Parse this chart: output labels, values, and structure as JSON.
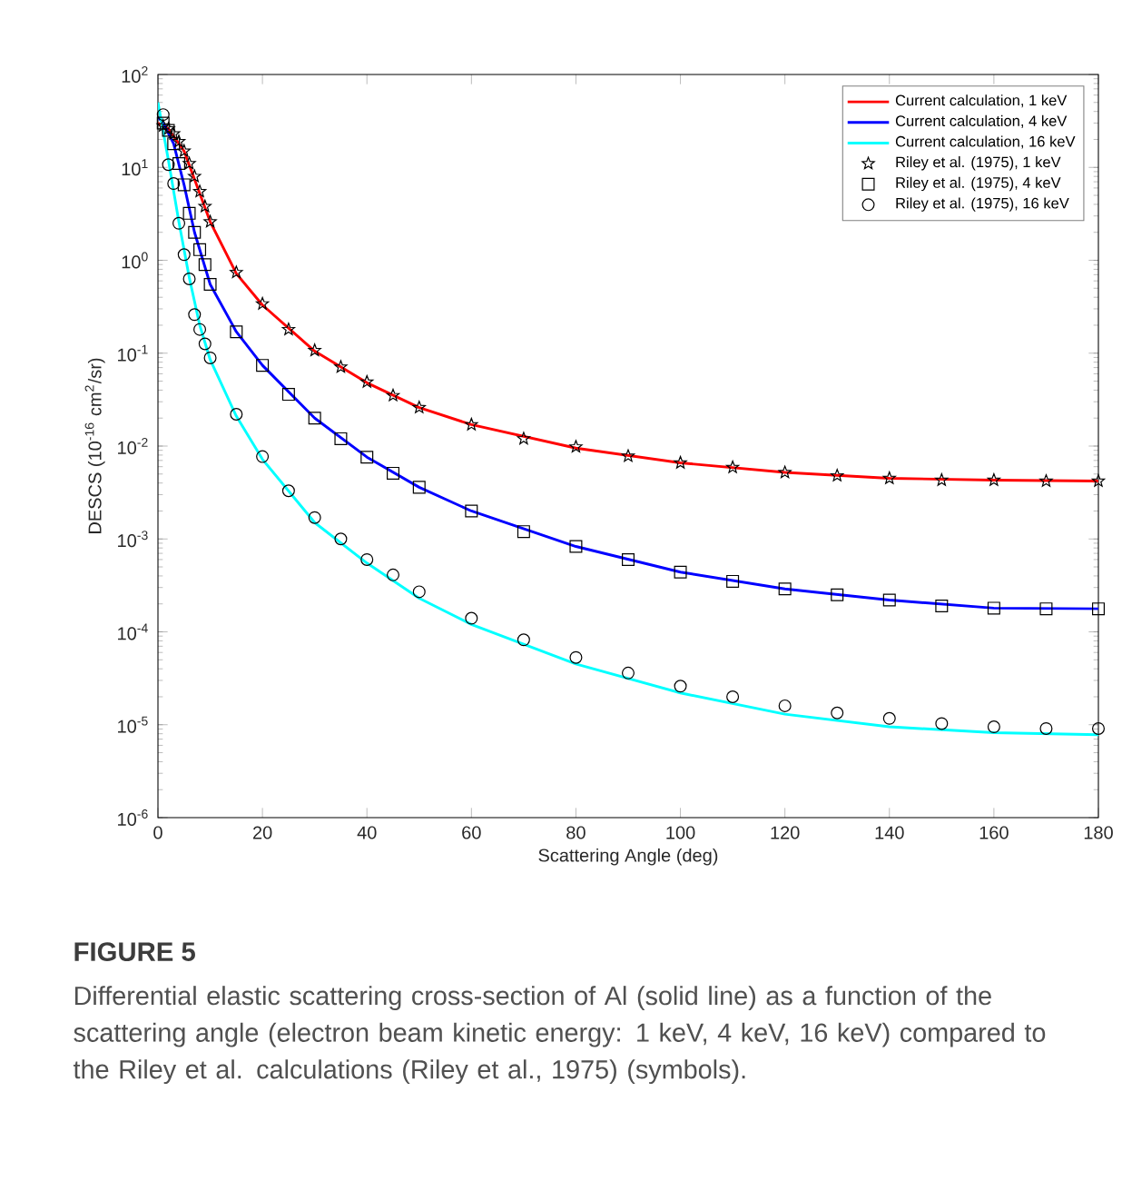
{
  "chart_data": {
    "type": "line",
    "xlabel": "Scattering Angle (deg)",
    "ylabel": "DESCS (10$^{-16}$ cm$^{2}$/sr)",
    "log": "y",
    "xlim": [
      0,
      180
    ],
    "xticks": [
      0,
      20,
      40,
      60,
      80,
      100,
      120,
      140,
      160,
      180
    ],
    "ylim": [
      1e-06,
      100
    ],
    "yticks": [
      {
        "value": 1e-06,
        "label": "10$^{-6}$"
      },
      {
        "value": 1e-05,
        "label": "10$^{-5}$"
      },
      {
        "value": 0.0001,
        "label": "10$^{-4}$"
      },
      {
        "value": 0.001,
        "label": "10$^{-3}$"
      },
      {
        "value": 0.01,
        "label": "10$^{-2}$"
      },
      {
        "value": 0.1,
        "label": "10$^{-1}$"
      },
      {
        "value": 1,
        "label": "10$^{0}$"
      },
      {
        "value": 10,
        "label": "10$^{1}$"
      },
      {
        "value": 100,
        "label": "10$^{2}$"
      }
    ],
    "legend": "top right",
    "grid": false,
    "series": [
      {
        "name": "Current calculation, 1 keV",
        "type": "line",
        "color": "#ff0000",
        "marker": "none",
        "x": [
          0,
          2,
          5,
          10,
          15,
          20,
          30,
          40,
          50,
          60,
          80,
          100,
          120,
          140,
          160,
          180
        ],
        "values": [
          30,
          26,
          15,
          2.6,
          0.72,
          0.33,
          0.105,
          0.048,
          0.026,
          0.017,
          0.0095,
          0.0066,
          0.0052,
          0.0045,
          0.0043,
          0.0042
        ]
      },
      {
        "name": "Current calculation, 4 keV",
        "type": "line",
        "color": "#0000ff",
        "marker": "none",
        "x": [
          0,
          1,
          3,
          5,
          7,
          10,
          15,
          20,
          30,
          40,
          50,
          60,
          80,
          100,
          120,
          140,
          160,
          180
        ],
        "values": [
          35,
          30,
          18,
          6.5,
          2,
          0.55,
          0.17,
          0.074,
          0.02,
          0.0076,
          0.0036,
          0.002,
          0.00083,
          0.00044,
          0.00029,
          0.00022,
          0.00018,
          0.000177
        ]
      },
      {
        "name": "Current calculation, 16 keV",
        "type": "line",
        "color": "#00ffff",
        "marker": "none",
        "x": [
          0,
          2,
          4,
          6,
          8,
          10,
          15,
          20,
          30,
          40,
          50,
          60,
          80,
          100,
          120,
          140,
          160,
          180
        ],
        "values": [
          50,
          12,
          2.6,
          0.65,
          0.2,
          0.085,
          0.021,
          0.0072,
          0.0015,
          0.00055,
          0.00023,
          0.00012,
          4.5e-05,
          2.2e-05,
          1.3e-05,
          9.5e-06,
          8.2e-06,
          7.8e-06
        ]
      },
      {
        "name": "Riley et al. (1975), 1 keV",
        "type": "scatter",
        "color": "#000000",
        "marker": "star",
        "x": [
          1,
          2,
          3,
          4,
          5,
          6,
          7,
          8,
          9,
          10,
          15,
          20,
          25,
          30,
          35,
          40,
          45,
          50,
          60,
          70,
          80,
          90,
          100,
          110,
          120,
          130,
          140,
          150,
          160,
          170,
          180
        ],
        "values": [
          28,
          26,
          23,
          19,
          15,
          11,
          8,
          5.5,
          3.8,
          2.6,
          0.74,
          0.34,
          0.18,
          0.107,
          0.071,
          0.049,
          0.035,
          0.026,
          0.017,
          0.012,
          0.0098,
          0.0078,
          0.0066,
          0.0059,
          0.0052,
          0.0048,
          0.0045,
          0.0043,
          0.0043,
          0.0042,
          0.0042
        ]
      },
      {
        "name": "Riley et al. (1975), 4 keV",
        "type": "scatter",
        "color": "#000000",
        "marker": "square",
        "x": [
          1,
          2,
          3,
          4,
          5,
          6,
          7,
          8,
          9,
          10,
          15,
          20,
          25,
          30,
          35,
          40,
          45,
          50,
          60,
          70,
          80,
          90,
          100,
          110,
          120,
          130,
          140,
          150,
          160,
          170,
          180
        ],
        "values": [
          30,
          25,
          18,
          11,
          6.5,
          3.2,
          2,
          1.3,
          0.9,
          0.55,
          0.17,
          0.074,
          0.036,
          0.02,
          0.012,
          0.0076,
          0.0051,
          0.0036,
          0.002,
          0.0012,
          0.00083,
          0.0006,
          0.00044,
          0.00035,
          0.00029,
          0.00025,
          0.00022,
          0.00019,
          0.00018,
          0.000177,
          0.000177
        ]
      },
      {
        "name": "Riley et al. (1975), 16 keV",
        "type": "scatter",
        "color": "#000000",
        "marker": "circle",
        "x": [
          1,
          2,
          3,
          4,
          5,
          6,
          7,
          8,
          9,
          10,
          15,
          20,
          25,
          30,
          35,
          40,
          45,
          50,
          60,
          70,
          80,
          90,
          100,
          110,
          120,
          130,
          140,
          150,
          160,
          170,
          180
        ],
        "values": [
          37,
          10.7,
          6.7,
          2.5,
          1.15,
          0.63,
          0.26,
          0.18,
          0.126,
          0.089,
          0.022,
          0.0077,
          0.0033,
          0.0017,
          0.001,
          0.0006,
          0.00041,
          0.00027,
          0.00014,
          8.2e-05,
          5.3e-05,
          3.6e-05,
          2.6e-05,
          2e-05,
          1.6e-05,
          1.34e-05,
          1.17e-05,
          1.03e-05,
          9.5e-06,
          9.1e-06,
          9.1e-06
        ]
      }
    ],
    "annotations": [
      "FIGURE 5",
      "Differential elastic scattering cross-section of Al (solid line) as a function of the scattering angle (electron beam kinetic energy: 1 keV, 4 keV, 16 keV) compared to the Riley et al. calculations (Riley et al., 1975) (symbols)."
    ]
  }
}
